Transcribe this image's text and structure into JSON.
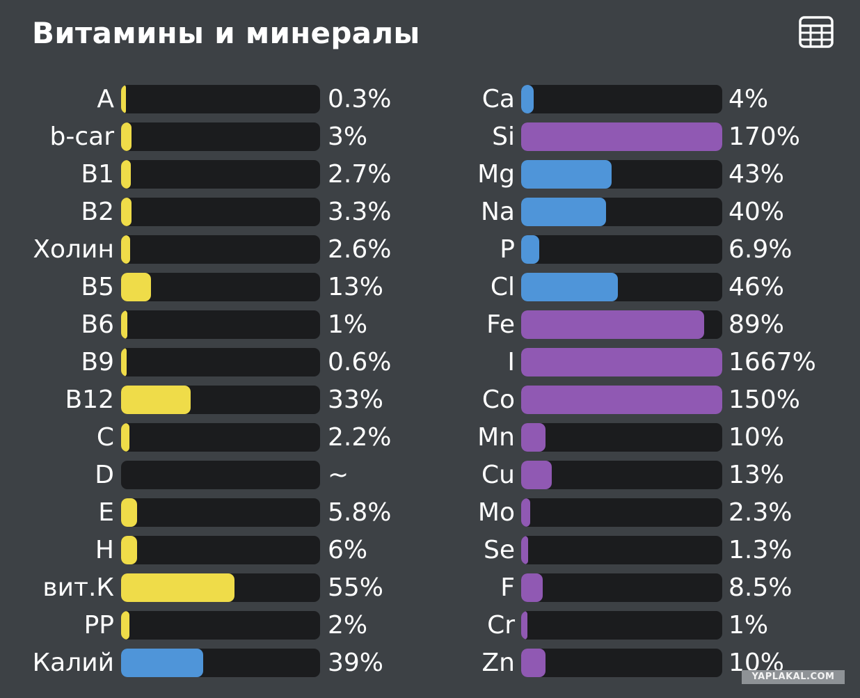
{
  "header": {
    "title": "Витамины и минералы",
    "table_icon": "table-grid-icon"
  },
  "colors": {
    "background": "#3d4145",
    "track": "#1b1c1e",
    "yellow": "#efdc49",
    "blue": "#4f95d9",
    "purple": "#9059b3"
  },
  "vitamins": [
    {
      "name": "A",
      "value": "0.3%",
      "fill": 0.003,
      "color": "yellow"
    },
    {
      "name": "b-car",
      "value": "3%",
      "fill": 0.03,
      "color": "yellow"
    },
    {
      "name": "B1",
      "value": "2.7%",
      "fill": 0.027,
      "color": "yellow"
    },
    {
      "name": "B2",
      "value": "3.3%",
      "fill": 0.033,
      "color": "yellow"
    },
    {
      "name": "Холин",
      "value": "2.6%",
      "fill": 0.026,
      "color": "yellow"
    },
    {
      "name": "B5",
      "value": "13%",
      "fill": 0.13,
      "color": "yellow"
    },
    {
      "name": "B6",
      "value": "1%",
      "fill": 0.01,
      "color": "yellow"
    },
    {
      "name": "B9",
      "value": "0.6%",
      "fill": 0.006,
      "color": "yellow"
    },
    {
      "name": "B12",
      "value": "33%",
      "fill": 0.33,
      "color": "yellow"
    },
    {
      "name": "C",
      "value": "2.2%",
      "fill": 0.022,
      "color": "yellow"
    },
    {
      "name": "D",
      "value": "~",
      "fill": 0,
      "color": "yellow"
    },
    {
      "name": "E",
      "value": "5.8%",
      "fill": 0.058,
      "color": "yellow"
    },
    {
      "name": "H",
      "value": "6%",
      "fill": 0.06,
      "color": "yellow"
    },
    {
      "name": "вит.К",
      "value": "55%",
      "fill": 0.55,
      "color": "yellow"
    },
    {
      "name": "PP",
      "value": "2%",
      "fill": 0.02,
      "color": "yellow"
    },
    {
      "name": "Калий",
      "value": "39%",
      "fill": 0.39,
      "color": "blue"
    }
  ],
  "minerals": [
    {
      "name": "Ca",
      "value": "4%",
      "fill": 0.04,
      "color": "blue"
    },
    {
      "name": "Si",
      "value": "170%",
      "fill": 1,
      "color": "purple"
    },
    {
      "name": "Mg",
      "value": "43%",
      "fill": 0.43,
      "color": "blue"
    },
    {
      "name": "Na",
      "value": "40%",
      "fill": 0.4,
      "color": "blue"
    },
    {
      "name": "P",
      "value": "6.9%",
      "fill": 0.069,
      "color": "blue"
    },
    {
      "name": "Cl",
      "value": "46%",
      "fill": 0.46,
      "color": "blue"
    },
    {
      "name": "Fe",
      "value": "89%",
      "fill": 0.89,
      "color": "purple"
    },
    {
      "name": "I",
      "value": "1667%",
      "fill": 1,
      "color": "purple"
    },
    {
      "name": "Co",
      "value": "150%",
      "fill": 1,
      "color": "purple"
    },
    {
      "name": "Mn",
      "value": "10%",
      "fill": 0.1,
      "color": "purple"
    },
    {
      "name": "Cu",
      "value": "13%",
      "fill": 0.13,
      "color": "purple"
    },
    {
      "name": "Mo",
      "value": "2.3%",
      "fill": 0.023,
      "color": "purple"
    },
    {
      "name": "Se",
      "value": "1.3%",
      "fill": 0.013,
      "color": "purple"
    },
    {
      "name": "F",
      "value": "8.5%",
      "fill": 0.085,
      "color": "purple"
    },
    {
      "name": "Cr",
      "value": "1%",
      "fill": 0.01,
      "color": "purple"
    },
    {
      "name": "Zn",
      "value": "10%",
      "fill": 0.1,
      "color": "purple"
    }
  ],
  "watermark": "YAPLAKAL.COM"
}
